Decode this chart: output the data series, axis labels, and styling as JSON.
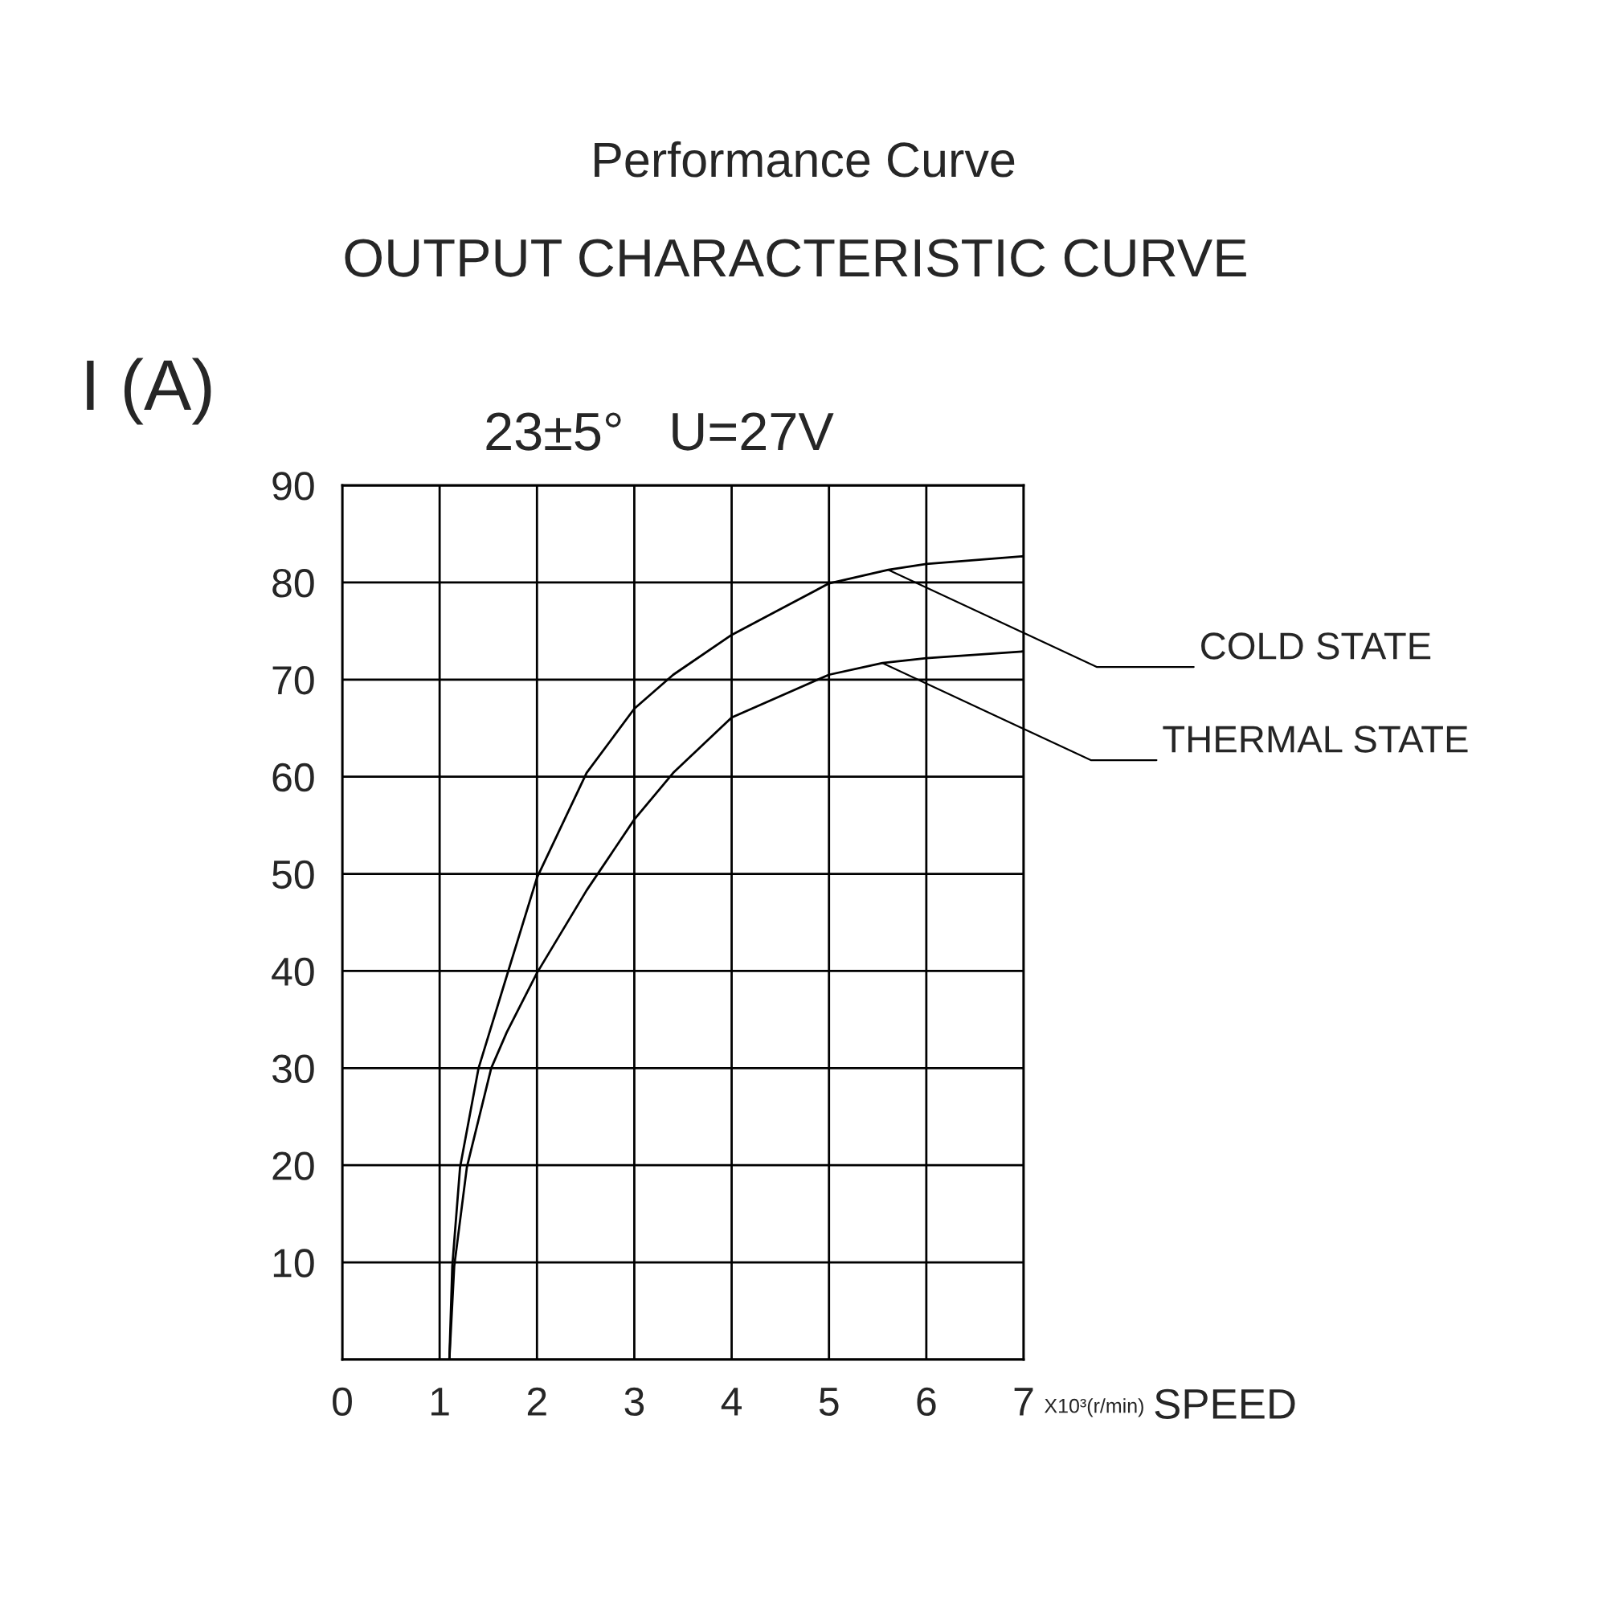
{
  "chart_data": {
    "type": "line",
    "title": "Performance Curve",
    "subtitle": "OUTPUT CHARACTERISTIC CURVE",
    "xlabel": "SPEED",
    "ylabel": "I (A)",
    "annotations": [
      "23±5°   U=27V",
      "X10³(r/min)"
    ],
    "series": [
      {
        "name": "COLD STATE",
        "color": "#000000",
        "x": [
          1.1,
          1.13,
          1.21,
          1.4,
          1.69,
          2.0,
          2.51,
          3.0,
          3.4,
          4.0,
          5.0,
          5.61,
          6.0,
          7.0
        ],
        "values": [
          0,
          9.6,
          19.8,
          30,
          39.5,
          49.6,
          60.4,
          67,
          70.5,
          74.6,
          79.9,
          81.3,
          81.9,
          82.7
        ]
      },
      {
        "name": "THERMAL STATE",
        "color": "#000000",
        "x": [
          1.1,
          1.15,
          1.28,
          1.53,
          1.69,
          2.0,
          2.51,
          3.0,
          3.4,
          4.0,
          5.0,
          5.55,
          6.0,
          7.0
        ],
        "values": [
          0,
          9.6,
          19.8,
          30,
          33.7,
          39.8,
          48.3,
          55.6,
          60.4,
          66.1,
          70.5,
          71.7,
          72.2,
          72.9
        ]
      }
    ],
    "xlim": [
      0,
      7
    ],
    "ylim": [
      0,
      90
    ],
    "xticks": [
      0,
      1,
      2,
      3,
      4,
      5,
      6,
      7
    ],
    "yticks": [
      {
        "value": 0,
        "label": null
      },
      10,
      20,
      30,
      40,
      50,
      60,
      70,
      80,
      90
    ],
    "grid": true,
    "marker": "none",
    "line_style": "solid"
  }
}
